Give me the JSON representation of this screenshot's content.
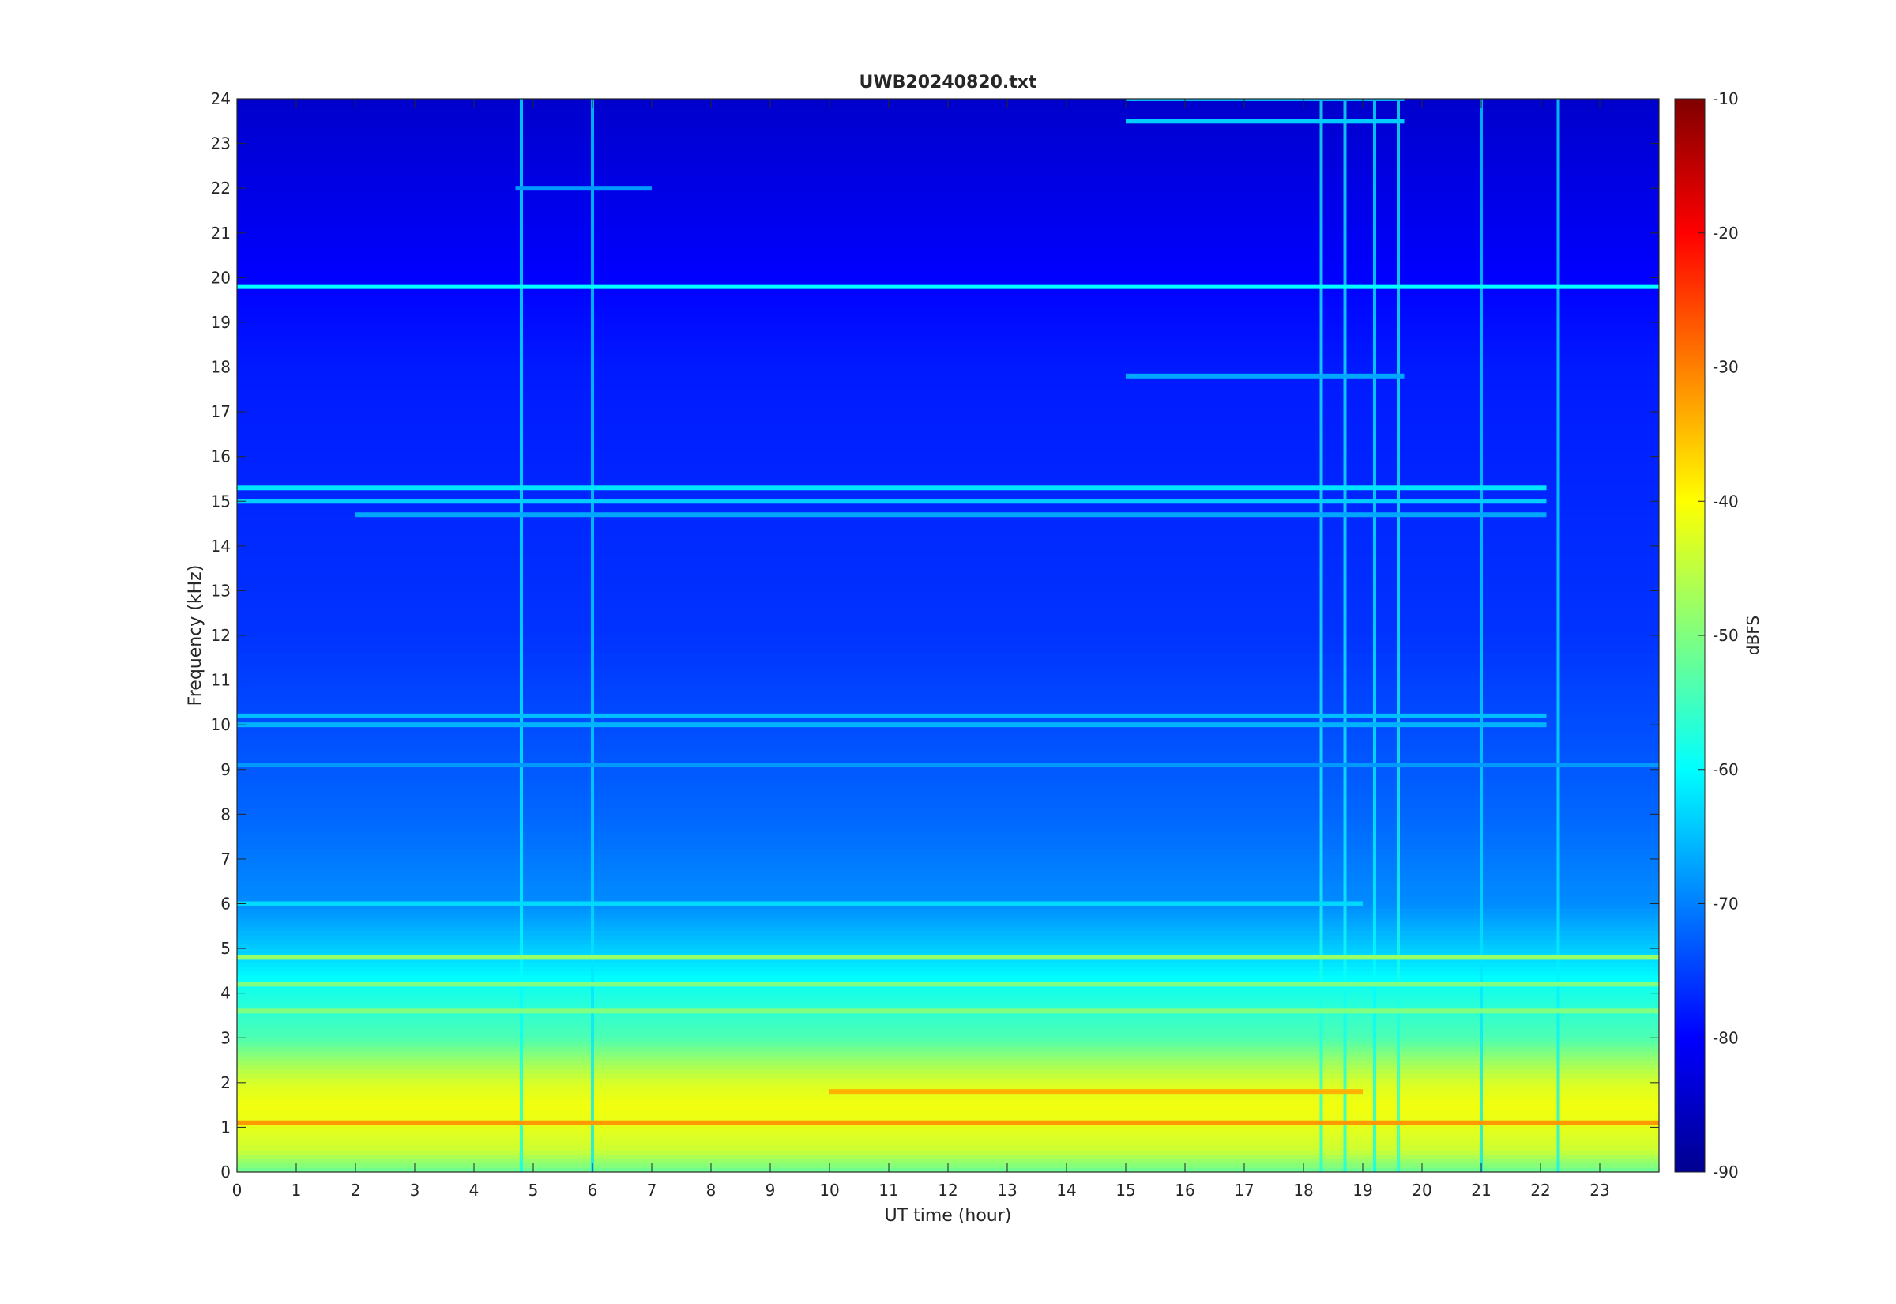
{
  "chart_data": {
    "type": "heatmap",
    "title": "UWB20240820.txt",
    "xlabel": "UT time (hour)",
    "ylabel": "Frequency (kHz)",
    "xlim": [
      0,
      24
    ],
    "ylim": [
      0,
      24
    ],
    "x_ticks": [
      "0",
      "1",
      "2",
      "3",
      "4",
      "5",
      "6",
      "7",
      "8",
      "9",
      "10",
      "11",
      "12",
      "13",
      "14",
      "15",
      "16",
      "17",
      "18",
      "19",
      "20",
      "21",
      "22",
      "23"
    ],
    "y_ticks": [
      "0",
      "1",
      "2",
      "3",
      "4",
      "5",
      "6",
      "7",
      "8",
      "9",
      "10",
      "11",
      "12",
      "13",
      "14",
      "15",
      "16",
      "17",
      "18",
      "19",
      "20",
      "21",
      "22",
      "23",
      "24"
    ],
    "colorbar": {
      "label": "dBFS",
      "colormap": "jet",
      "clim": [
        -90,
        -10
      ],
      "ticks": [
        "-90",
        "-80",
        "-70",
        "-60",
        "-50",
        "-40",
        "-30",
        "-20",
        "-10"
      ]
    },
    "intensity_profile_by_frequency_khz": [
      {
        "f": 0.0,
        "dbfs": -52
      },
      {
        "f": 0.5,
        "dbfs": -44
      },
      {
        "f": 1.0,
        "dbfs": -42
      },
      {
        "f": 1.5,
        "dbfs": -41
      },
      {
        "f": 2.0,
        "dbfs": -43
      },
      {
        "f": 2.5,
        "dbfs": -48
      },
      {
        "f": 3.0,
        "dbfs": -54
      },
      {
        "f": 4.0,
        "dbfs": -58
      },
      {
        "f": 5.0,
        "dbfs": -64
      },
      {
        "f": 6.0,
        "dbfs": -69
      },
      {
        "f": 8.0,
        "dbfs": -72
      },
      {
        "f": 10.0,
        "dbfs": -74
      },
      {
        "f": 12.0,
        "dbfs": -76
      },
      {
        "f": 15.0,
        "dbfs": -77
      },
      {
        "f": 18.0,
        "dbfs": -78
      },
      {
        "f": 21.0,
        "dbfs": -81
      },
      {
        "f": 24.0,
        "dbfs": -84
      }
    ],
    "horizontal_lines": [
      {
        "f": 19.8,
        "t0": 0,
        "t1": 24,
        "dbfs": -60
      },
      {
        "f": 23.5,
        "t0": 15,
        "t1": 19.7,
        "dbfs": -64
      },
      {
        "f": 24.0,
        "t0": 15,
        "t1": 19.7,
        "dbfs": -66
      },
      {
        "f": 22.0,
        "t0": 4.7,
        "t1": 7.0,
        "dbfs": -68
      },
      {
        "f": 17.8,
        "t0": 15,
        "t1": 19.7,
        "dbfs": -67
      },
      {
        "f": 15.3,
        "t0": 0,
        "t1": 22.1,
        "dbfs": -62
      },
      {
        "f": 15.0,
        "t0": 0,
        "t1": 22.1,
        "dbfs": -64
      },
      {
        "f": 14.7,
        "t0": 2,
        "t1": 22.1,
        "dbfs": -67
      },
      {
        "f": 10.2,
        "t0": 0,
        "t1": 22.1,
        "dbfs": -65
      },
      {
        "f": 10.0,
        "t0": 0,
        "t1": 22.1,
        "dbfs": -66
      },
      {
        "f": 9.1,
        "t0": 0,
        "t1": 24,
        "dbfs": -68
      },
      {
        "f": 6.0,
        "t0": 0,
        "t1": 19,
        "dbfs": -63
      },
      {
        "f": 4.8,
        "t0": 0,
        "t1": 24,
        "dbfs": -48
      },
      {
        "f": 4.2,
        "t0": 0,
        "t1": 24,
        "dbfs": -50
      },
      {
        "f": 3.6,
        "t0": 0,
        "t1": 24,
        "dbfs": -50
      },
      {
        "f": 1.1,
        "t0": 0,
        "t1": 24,
        "dbfs": -32
      },
      {
        "f": 1.8,
        "t0": 10,
        "t1": 19,
        "dbfs": -34
      }
    ],
    "vertical_bursts": [
      {
        "t": 4.8,
        "dbfs": -60
      },
      {
        "t": 6.0,
        "dbfs": -62
      },
      {
        "t": 18.3,
        "dbfs": -58
      },
      {
        "t": 18.7,
        "dbfs": -59
      },
      {
        "t": 19.2,
        "dbfs": -60
      },
      {
        "t": 19.6,
        "dbfs": -58
      },
      {
        "t": 21.0,
        "dbfs": -62
      },
      {
        "t": 22.3,
        "dbfs": -61
      }
    ]
  }
}
